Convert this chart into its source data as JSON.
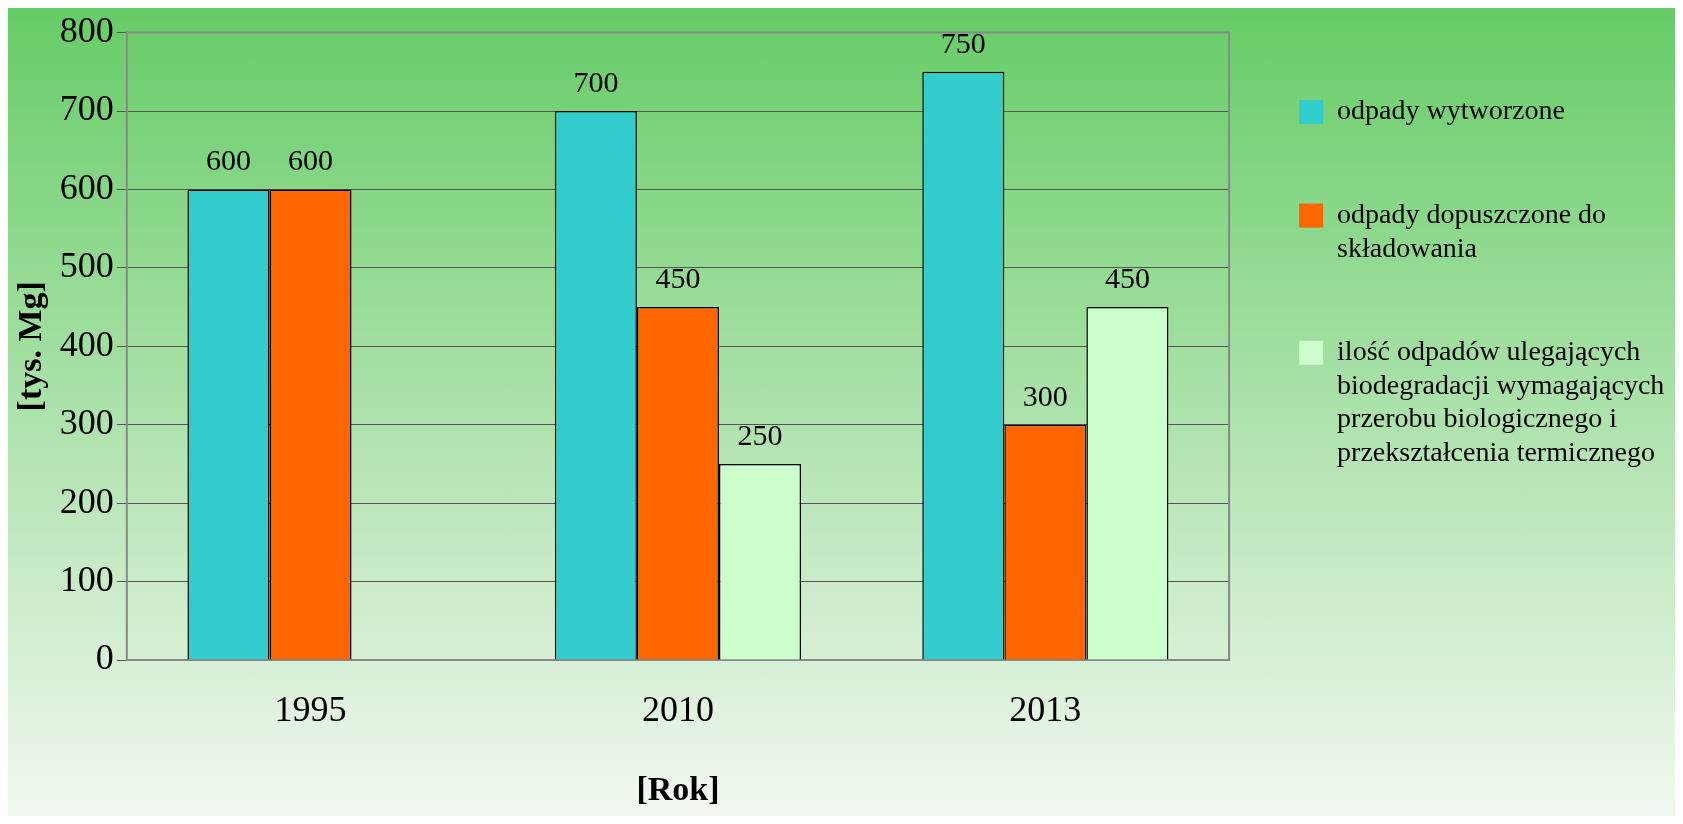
{
  "chart_data": {
    "type": "bar",
    "xlabel": "[Rok]",
    "ylabel": "[tys. Mg]",
    "categories": [
      "1995",
      "2010",
      "2013"
    ],
    "series": [
      {
        "name": "odpady wytworzone",
        "color": "#33cccc",
        "values": [
          600,
          700,
          750
        ]
      },
      {
        "name": "odpady dopuszczone do składowania",
        "color": "#ff6600",
        "values": [
          600,
          450,
          300
        ]
      },
      {
        "name": "ilość odpadów ulegających biodegradacji wymagających przerobu biologicznego i przekształcenia termicznego",
        "color": "#ccffcc",
        "values": [
          null,
          250,
          450
        ]
      }
    ],
    "ylim": [
      0,
      800
    ],
    "yticks": [
      0,
      100,
      200,
      300,
      400,
      500,
      600,
      700,
      800
    ],
    "grid": "y",
    "legend": "right",
    "data_labels": true
  }
}
